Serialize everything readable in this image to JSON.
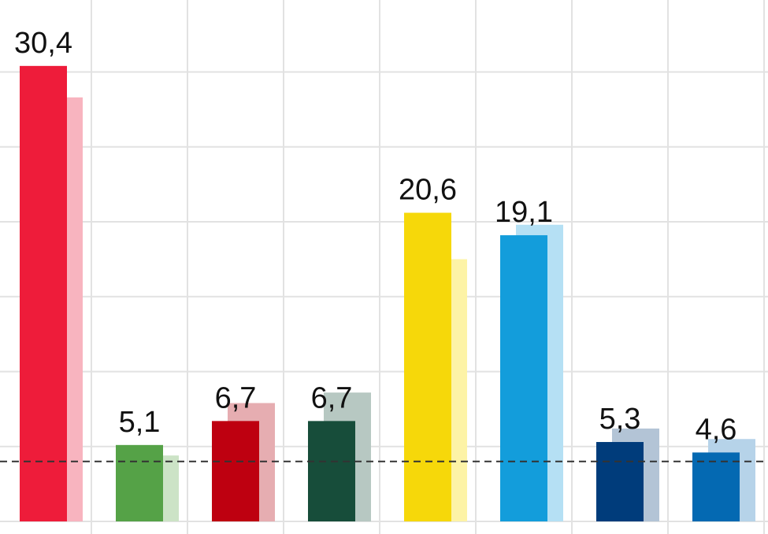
{
  "chart_data": {
    "type": "bar",
    "categories": [
      null,
      null,
      null,
      null,
      null,
      null,
      null,
      null
    ],
    "series": [
      {
        "colors": [
          "#ee1c3a",
          "#55a247",
          "#be0010",
          "#174d3a",
          "#f6d80a",
          "#139ddb",
          "#003c7b",
          "#0469b2"
        ],
        "values": [
          30.4,
          5.1,
          6.7,
          6.7,
          20.6,
          19.1,
          5.3,
          4.6
        ],
        "value_labels": [
          "30,4",
          "5,1",
          "6,7",
          "6,7",
          "20,6",
          "19,1",
          "5,3",
          "4,6"
        ]
      },
      {
        "colors": [
          "#f8b4bf",
          "#cce3c6",
          "#e6adb1",
          "#b7c8c2",
          "#fdf3a6",
          "#b5e0f4",
          "#b3c4d6",
          "#b6d3e9"
        ],
        "values": [
          28.3,
          4.4,
          7.9,
          8.6,
          17.5,
          19.8,
          6.2,
          5.5
        ]
      }
    ],
    "ylim": [
      -0.84,
      34.8
    ],
    "gridlines": [
      0,
      5,
      10,
      15,
      20,
      25,
      30
    ],
    "grid": true,
    "threshold": 4
  }
}
